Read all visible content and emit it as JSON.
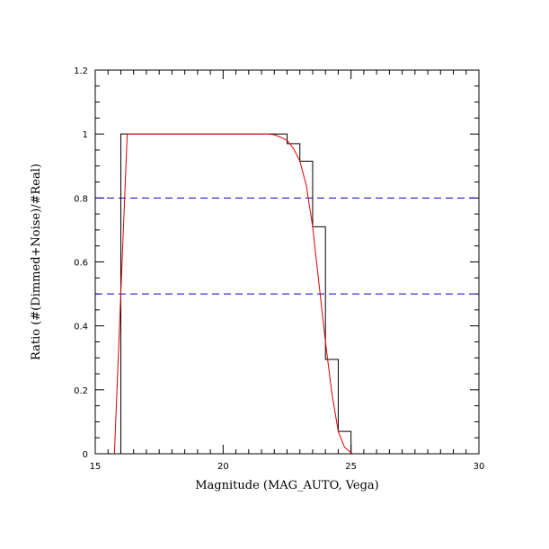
{
  "chart_data": {
    "type": "line",
    "title": "",
    "xlabel": "Magnitude (MAG_AUTO, Vega)",
    "ylabel": "Ratio (#(Dimmed+Noise)/#Real)",
    "xlim": [
      15,
      30
    ],
    "ylim": [
      0,
      1.2
    ],
    "x_ticks": [
      15,
      20,
      25,
      30
    ],
    "x_tick_labels": [
      "15",
      "20",
      "25",
      "30"
    ],
    "y_ticks": [
      0,
      0.2,
      0.4,
      0.6,
      0.8,
      1,
      1.2
    ],
    "y_tick_labels": [
      "0",
      "0.2",
      "0.4",
      "0.6",
      "0.8",
      "1",
      "1.2"
    ],
    "grid": false,
    "reference_lines": [
      {
        "y": 0.8,
        "color": "#0000cc",
        "style": "dashed"
      },
      {
        "y": 0.5,
        "color": "#0000cc",
        "style": "dashed"
      }
    ],
    "series": [
      {
        "kind": "histogram-step",
        "color": "#000000",
        "bin_edges": [
          15.5,
          16.0,
          16.5,
          17.0,
          17.5,
          18.0,
          18.5,
          19.0,
          19.5,
          20.0,
          20.5,
          21.0,
          21.5,
          22.0,
          22.5,
          23.0,
          23.5,
          24.0,
          24.5,
          25.0,
          25.5,
          26.0,
          26.5,
          27.0,
          27.5,
          28.0,
          28.5,
          29.0,
          29.5,
          30.0
        ],
        "values": [
          0,
          1.0,
          1.0,
          1.0,
          1.0,
          1.0,
          1.0,
          1.0,
          1.0,
          1.0,
          1.0,
          1.0,
          1.0,
          1.0,
          0.97,
          0.915,
          0.71,
          0.295,
          0.07,
          0,
          0,
          0,
          0,
          0,
          0,
          0,
          0,
          0,
          0
        ]
      },
      {
        "kind": "fit-curve",
        "color": "#dd0000",
        "x": [
          15.75,
          16.0,
          16.25,
          17,
          18,
          19,
          20,
          21,
          21.75,
          22.0,
          22.25,
          22.5,
          22.75,
          23.0,
          23.25,
          23.5,
          23.75,
          24.0,
          24.25,
          24.5,
          24.75,
          25.05,
          26,
          27,
          28,
          29,
          30
        ],
        "y": [
          0,
          0.5,
          1.0,
          1.0,
          1.0,
          1.0,
          1.0,
          1.0,
          1.0,
          0.998,
          0.99,
          0.98,
          0.955,
          0.915,
          0.84,
          0.71,
          0.53,
          0.35,
          0.19,
          0.07,
          0.02,
          0,
          0,
          0,
          0,
          0,
          0
        ]
      }
    ]
  }
}
